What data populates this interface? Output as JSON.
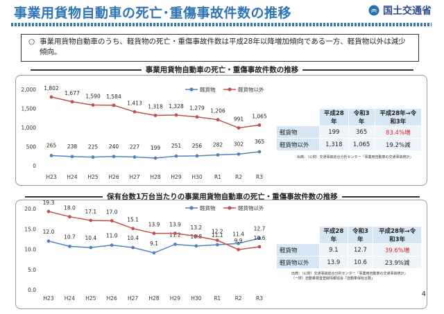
{
  "header": {
    "title": "事業用貨物自動車の死亡･重傷事故件数の推移",
    "logo_text": "国土交通省"
  },
  "summary": {
    "bullet": "○",
    "text": "事業用貨物自動車のうち、軽貨物の死亡・重傷事故件数は平成28年以降増加傾向である一方、軽貨物以外は減少傾向。"
  },
  "chart_data": [
    {
      "type": "line",
      "title": "事業用貨物自動車の死亡・重傷事故件数の推移",
      "categories": [
        "H23",
        "H24",
        "H25",
        "H26",
        "H27",
        "H28",
        "H29",
        "H30",
        "R1",
        "R2",
        "R3"
      ],
      "series": [
        {
          "name": "軽貨物",
          "color": "#4f81bd",
          "values": [
            265,
            238,
            225,
            240,
            227,
            199,
            251,
            256,
            282,
            302,
            365
          ]
        },
        {
          "name": "軽貨物以外",
          "color": "#c0504d",
          "values": [
            1802,
            1677,
            1590,
            1584,
            1413,
            1318,
            1328,
            1279,
            1206,
            991,
            1065
          ]
        }
      ],
      "value_labels": {
        "軽貨物": [
          "265",
          "238",
          "225",
          "240",
          "227",
          "199",
          "251",
          "256",
          "282",
          "302",
          "365"
        ],
        "軽貨物以外": [
          "1,802",
          "1,677",
          "1,590",
          "1,584",
          "1,413",
          "1,318",
          "1,328",
          "1,279",
          "1,206",
          "991",
          "1,065"
        ]
      },
      "yticks": [
        "0",
        "500",
        "1,000",
        "1,500",
        "2,000"
      ],
      "ylim": [
        0,
        2000
      ],
      "legend": "top-center",
      "grid": false
    },
    {
      "type": "line",
      "title": "保有台数1万台当たりの事業用貨物自動車の死亡・重傷事故件数の推移",
      "categories": [
        "H23",
        "H24",
        "H25",
        "H26",
        "H27",
        "H28",
        "H29",
        "H30",
        "R1",
        "R2",
        "R3"
      ],
      "series": [
        {
          "name": "軽貨物",
          "color": "#4f81bd",
          "values": [
            12.0,
            10.7,
            10.4,
            11.0,
            10.4,
            9.1,
            11.2,
            10.8,
            11.1,
            11.4,
            12.7
          ]
        },
        {
          "name": "軽貨物以外",
          "color": "#c0504d",
          "values": [
            19.3,
            18.0,
            17.1,
            17.0,
            15.1,
            13.9,
            13.9,
            13.2,
            12.2,
            9.9,
            10.6
          ]
        }
      ],
      "value_labels": {
        "軽貨物": [
          "12.0",
          "10.7",
          "10.4",
          "11.0",
          "10.4",
          "9.1",
          "11.2",
          "10.8",
          "11.1",
          "11.4",
          "12.7"
        ],
        "軽貨物以外": [
          "19.3",
          "18.0",
          "17.1",
          "17.0",
          "15.1",
          "13.9",
          "13.9",
          "13.2",
          "12.2",
          "9.9",
          "10.6"
        ]
      },
      "yticks": [
        "0.0",
        "5.0",
        "10.0",
        "15.0",
        "20.0"
      ],
      "ylim": [
        0,
        20
      ],
      "legend": "top-center",
      "grid": false
    }
  ],
  "table1": {
    "headers": [
      "平成28年",
      "令和3年",
      "平成28年→令和3年"
    ],
    "rows": [
      {
        "label": "軽貨物",
        "a": "199",
        "b": "365",
        "c": "83.4%増"
      },
      {
        "label": "軽貨物以外",
        "a": "1,318",
        "b": "1,065",
        "c": "19.2%減"
      }
    ],
    "source": "出典：（公財）交通事故総合分析センター「事業用自動車の交通事故統計」"
  },
  "table2": {
    "headers": [
      "平成28年",
      "令和3年",
      "平成28年→令和3年"
    ],
    "rows": [
      {
        "label": "軽貨物",
        "a": "9.1",
        "b": "12.7",
        "c": "39.6%増"
      },
      {
        "label": "軽貨物以外",
        "a": "13.9",
        "b": "10.6",
        "c": "23.9%減"
      }
    ],
    "source1": "出典：（公財）交通事故総合分析センター「事業用自動車の交通事故統計」",
    "source2": "（一財）自動車検査登録情報協会「自動車保有台数」"
  },
  "page_number": "4"
}
